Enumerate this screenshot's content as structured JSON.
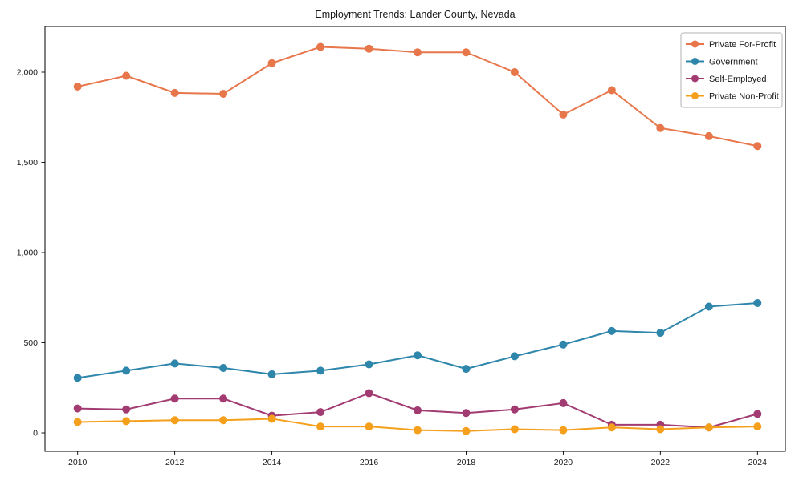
{
  "chart_data": {
    "type": "line",
    "title": "Employment Trends: Lander County, Nevada",
    "x": [
      2010,
      2011,
      2012,
      2013,
      2014,
      2015,
      2016,
      2017,
      2018,
      2019,
      2020,
      2021,
      2022,
      2023,
      2024
    ],
    "x_tick_labels": [
      "2010",
      "2012",
      "2014",
      "2016",
      "2018",
      "2020",
      "2022",
      "2024"
    ],
    "x_tick_values": [
      2010,
      2012,
      2014,
      2016,
      2018,
      2020,
      2022,
      2024
    ],
    "y_ticks": [
      {
        "value": 0,
        "label": "0"
      },
      {
        "value": 500,
        "label": "500"
      },
      {
        "value": 1000,
        "label": "1,000"
      },
      {
        "value": 1500,
        "label": "1,500"
      },
      {
        "value": 2000,
        "label": "2,000"
      }
    ],
    "ylim": [
      -100,
      2250
    ],
    "xlim": [
      2009.33,
      2024.57
    ],
    "grid": false,
    "legend_position": "upper right",
    "series": [
      {
        "name": "Private For-Profit",
        "color": "#E8764B",
        "values": [
          1920,
          1980,
          1885,
          1880,
          2050,
          2140,
          2130,
          2110,
          2110,
          2000,
          1765,
          1900,
          1690,
          1645,
          1590
        ]
      },
      {
        "name": "Government",
        "color": "#2E86AB",
        "values": [
          305,
          345,
          385,
          360,
          325,
          345,
          380,
          430,
          355,
          425,
          490,
          565,
          555,
          700,
          720
        ]
      },
      {
        "name": "Self-Employed",
        "color": "#A23B72",
        "values": [
          135,
          130,
          190,
          190,
          95,
          115,
          220,
          125,
          110,
          130,
          165,
          45,
          45,
          30,
          105
        ]
      },
      {
        "name": "Private Non-Profit",
        "color": "#F5A01D",
        "values": [
          60,
          65,
          70,
          70,
          78,
          35,
          35,
          15,
          10,
          20,
          15,
          30,
          20,
          30,
          35
        ]
      }
    ]
  }
}
